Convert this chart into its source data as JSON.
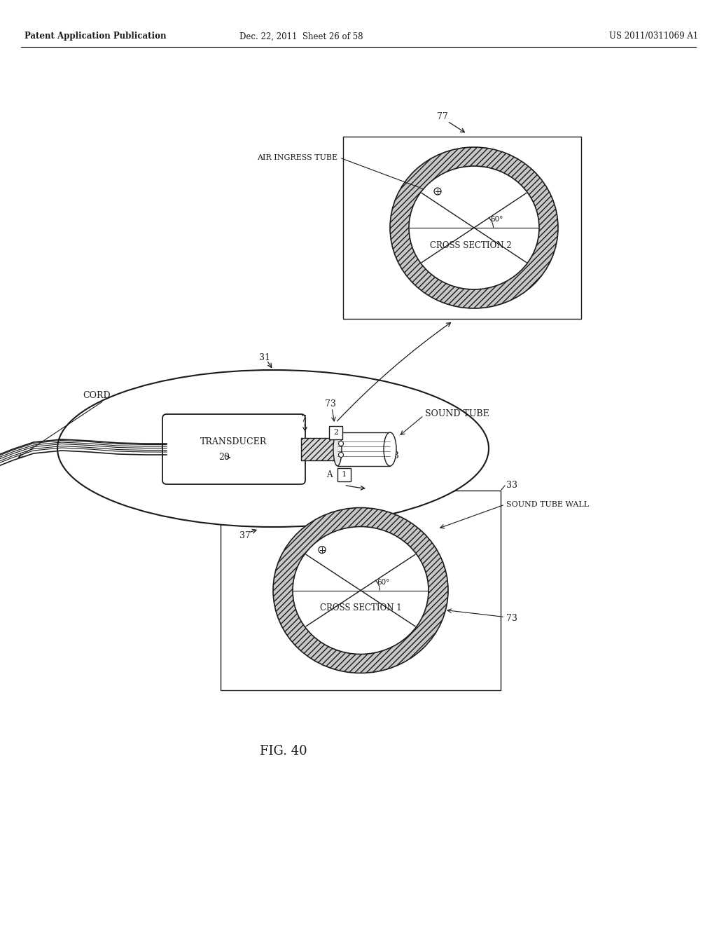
{
  "header_left": "Patent Application Publication",
  "header_mid": "Dec. 22, 2011  Sheet 26 of 58",
  "header_right": "US 2011/0311069 A1",
  "fig_label": "FIG. 40",
  "bg_color": "#ffffff",
  "line_color": "#1a1a1a"
}
